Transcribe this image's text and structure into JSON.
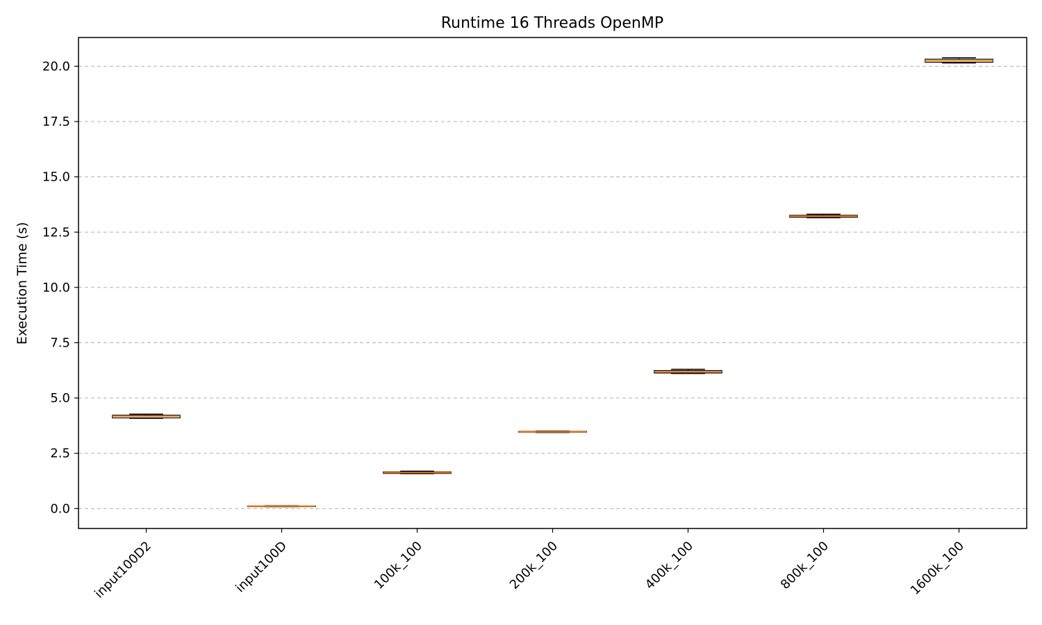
{
  "chart_data": {
    "type": "box",
    "title": "Runtime 16 Threads OpenMP",
    "xlabel": "",
    "ylabel": "Execution Time (s)",
    "ylim": [
      -0.9,
      21.3
    ],
    "yticks": [
      "0.0",
      "2.5",
      "5.0",
      "7.5",
      "10.0",
      "12.5",
      "15.0",
      "17.5",
      "20.0"
    ],
    "grid": "y-dashed",
    "colors": {
      "median": "#ff7f0e",
      "box": "#000000",
      "grid": "#b0b0b0"
    },
    "categories": [
      "input100D2",
      "input100D",
      "100k_100",
      "200k_100",
      "400k_100",
      "800k_100",
      "1600k_100"
    ],
    "boxes": [
      {
        "min": 4.08,
        "q1": 4.1,
        "median": 4.18,
        "q3": 4.22,
        "max": 4.27
      },
      {
        "min": 0.09,
        "q1": 0.1,
        "median": 0.11,
        "q3": 0.12,
        "max": 0.13
      },
      {
        "min": 1.58,
        "q1": 1.59,
        "median": 1.63,
        "q3": 1.66,
        "max": 1.69
      },
      {
        "min": 3.44,
        "q1": 3.45,
        "median": 3.47,
        "q3": 3.49,
        "max": 3.5
      },
      {
        "min": 6.11,
        "q1": 6.13,
        "median": 6.18,
        "q3": 6.24,
        "max": 6.3
      },
      {
        "min": 13.15,
        "q1": 13.17,
        "median": 13.22,
        "q3": 13.26,
        "max": 13.31
      },
      {
        "min": 20.15,
        "q1": 20.18,
        "median": 20.25,
        "q3": 20.32,
        "max": 20.38
      }
    ]
  }
}
